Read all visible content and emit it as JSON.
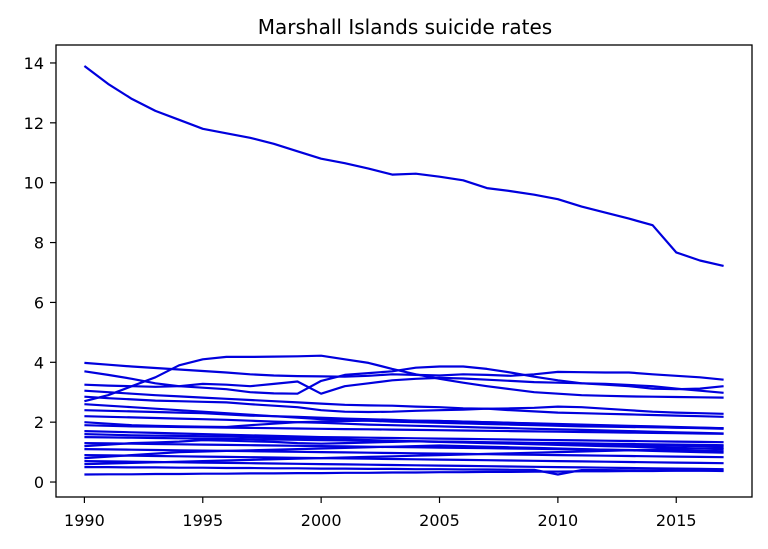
{
  "chart_data": {
    "type": "line",
    "title": "Marshall Islands suicide rates",
    "xlabel": "",
    "ylabel": "",
    "xlim": [
      1988.8,
      2018.2
    ],
    "ylim": [
      -0.5,
      14.6
    ],
    "xticks": [
      1990,
      1995,
      2000,
      2005,
      2010,
      2015
    ],
    "yticks": [
      0,
      2,
      4,
      6,
      8,
      10,
      12,
      14
    ],
    "line_color": "#0000dd",
    "grid": false,
    "x": [
      1990,
      1991,
      1992,
      1993,
      1994,
      1995,
      1996,
      1997,
      1998,
      1999,
      2000,
      2001,
      2002,
      2003,
      2004,
      2005,
      2006,
      2007,
      2008,
      2009,
      2010,
      2011,
      2012,
      2013,
      2014,
      2015,
      2016,
      2017
    ],
    "series": [
      {
        "values": [
          13.9,
          13.3,
          12.8,
          12.4,
          12.1,
          11.8,
          11.65,
          11.5,
          11.3,
          11.05,
          10.8,
          10.65,
          10.47,
          10.27,
          10.3,
          10.2,
          10.08,
          9.82,
          9.72,
          9.6,
          9.45,
          9.2,
          9.0,
          8.8,
          8.58,
          7.67,
          7.4,
          7.22
        ]
      },
      {
        "values": [
          3.98,
          3.92,
          3.86,
          3.81,
          3.76,
          3.71,
          3.66,
          3.6,
          3.56,
          3.54,
          3.53,
          3.52,
          3.55,
          3.6,
          3.58,
          3.56,
          3.6,
          3.58,
          3.55,
          3.6,
          3.68,
          3.67,
          3.66,
          3.66,
          3.6,
          3.55,
          3.5,
          3.42
        ]
      },
      {
        "values": [
          2.7,
          2.9,
          3.2,
          3.5,
          3.9,
          4.1,
          4.18,
          4.18,
          4.19,
          4.2,
          4.22,
          4.1,
          3.98,
          3.78,
          3.6,
          3.45,
          3.32,
          3.2,
          3.1,
          3.0,
          2.95,
          2.9,
          2.88,
          2.86,
          2.85,
          2.84,
          2.83,
          2.82
        ]
      },
      {
        "values": [
          3.7,
          3.58,
          3.45,
          3.3,
          3.2,
          3.15,
          3.1,
          3.0,
          2.96,
          2.95,
          3.38,
          3.58,
          3.64,
          3.7,
          3.82,
          3.86,
          3.86,
          3.78,
          3.66,
          3.52,
          3.4,
          3.3,
          3.25,
          3.2,
          3.12,
          3.1,
          3.12,
          3.2
        ]
      },
      {
        "values": [
          3.25,
          3.22,
          3.2,
          3.18,
          3.2,
          3.28,
          3.25,
          3.2,
          3.28,
          3.36,
          2.95,
          3.2,
          3.3,
          3.4,
          3.45,
          3.48,
          3.46,
          3.42,
          3.38,
          3.34,
          3.32,
          3.3,
          3.28,
          3.24,
          3.2,
          3.12,
          3.05,
          2.98
        ]
      },
      {
        "values": [
          3.05,
          3.0,
          2.95,
          2.9,
          2.86,
          2.82,
          2.78,
          2.74,
          2.7,
          2.66,
          2.62,
          2.58,
          2.56,
          2.55,
          2.52,
          2.5,
          2.46,
          2.45,
          2.46,
          2.48,
          2.52,
          2.5,
          2.45,
          2.4,
          2.35,
          2.32,
          2.3,
          2.28
        ]
      },
      {
        "values": [
          2.85,
          2.8,
          2.76,
          2.72,
          2.7,
          2.68,
          2.66,
          2.6,
          2.55,
          2.5,
          2.4,
          2.35,
          2.34,
          2.35,
          2.38,
          2.4,
          2.42,
          2.45,
          2.4,
          2.36,
          2.32,
          2.3,
          2.28,
          2.26,
          2.24,
          2.22,
          2.2,
          2.18
        ]
      },
      {
        "values": [
          2.6,
          2.55,
          2.5,
          2.45,
          2.4,
          2.35,
          2.3,
          2.25,
          2.2,
          2.15,
          2.1,
          2.08,
          2.05,
          2.02,
          2.0,
          1.98,
          1.96,
          1.94,
          1.92,
          1.9,
          1.88,
          1.86,
          1.85,
          1.84,
          1.83,
          1.82,
          1.81,
          1.8
        ]
      },
      {
        "values": [
          2.4,
          2.38,
          2.36,
          2.34,
          2.32,
          2.3,
          2.26,
          2.22,
          2.2,
          2.18,
          2.15,
          2.12,
          2.1,
          2.08,
          2.05,
          2.04,
          2.02,
          2.0,
          1.98,
          1.96,
          1.94,
          1.92,
          1.9,
          1.88,
          1.86,
          1.84,
          1.82,
          1.8
        ]
      },
      {
        "values": [
          2.2,
          2.18,
          2.16,
          2.14,
          2.12,
          2.1,
          2.08,
          2.05,
          2.02,
          2.0,
          1.98,
          1.95,
          1.92,
          1.9,
          1.88,
          1.86,
          1.84,
          1.82,
          1.8,
          1.78,
          1.76,
          1.74,
          1.72,
          1.7,
          1.68,
          1.66,
          1.64,
          1.62
        ]
      },
      {
        "values": [
          1.9,
          1.88,
          1.86,
          1.85,
          1.84,
          1.83,
          1.82,
          1.81,
          1.8,
          1.79,
          1.78,
          1.77,
          1.76,
          1.75,
          1.74,
          1.73,
          1.72,
          1.71,
          1.7,
          1.69,
          1.68,
          1.67,
          1.66,
          1.65,
          1.64,
          1.63,
          1.62,
          1.61
        ]
      },
      {
        "values": [
          1.7,
          1.68,
          1.66,
          1.64,
          1.62,
          1.6,
          1.58,
          1.56,
          1.54,
          1.52,
          1.5,
          1.49,
          1.48,
          1.47,
          1.46,
          1.45,
          1.44,
          1.43,
          1.42,
          1.41,
          1.4,
          1.39,
          1.38,
          1.37,
          1.36,
          1.35,
          1.34,
          1.33
        ]
      },
      {
        "values": [
          1.5,
          1.49,
          1.48,
          1.47,
          1.46,
          1.45,
          1.44,
          1.43,
          1.42,
          1.41,
          1.4,
          1.39,
          1.38,
          1.37,
          1.36,
          1.35,
          1.34,
          1.33,
          1.32,
          1.31,
          1.3,
          1.29,
          1.28,
          1.27,
          1.26,
          1.25,
          1.24,
          1.23
        ]
      },
      {
        "values": [
          1.3,
          1.29,
          1.28,
          1.27,
          1.26,
          1.25,
          1.24,
          1.23,
          1.22,
          1.21,
          1.2,
          1.19,
          1.18,
          1.17,
          1.16,
          1.15,
          1.14,
          1.13,
          1.12,
          1.11,
          1.1,
          1.09,
          1.08,
          1.07,
          1.06,
          1.05,
          1.04,
          1.03
        ]
      },
      {
        "values": [
          1.1,
          1.09,
          1.08,
          1.07,
          1.06,
          1.05,
          1.04,
          1.03,
          1.02,
          1.01,
          1.0,
          0.99,
          0.98,
          0.97,
          0.96,
          0.95,
          0.94,
          0.93,
          0.92,
          0.91,
          0.9,
          0.89,
          0.88,
          0.87,
          0.86,
          0.85,
          0.84,
          0.83
        ]
      },
      {
        "values": [
          0.9,
          0.89,
          0.88,
          0.87,
          0.86,
          0.85,
          0.84,
          0.83,
          0.82,
          0.81,
          0.8,
          0.79,
          0.78,
          0.77,
          0.76,
          0.75,
          0.74,
          0.73,
          0.72,
          0.71,
          0.7,
          0.69,
          0.68,
          0.67,
          0.66,
          0.65,
          0.64,
          0.63
        ]
      },
      {
        "values": [
          0.7,
          0.69,
          0.68,
          0.67,
          0.66,
          0.65,
          0.64,
          0.63,
          0.62,
          0.61,
          0.6,
          0.59,
          0.58,
          0.57,
          0.56,
          0.55,
          0.54,
          0.53,
          0.52,
          0.51,
          0.5,
          0.49,
          0.48,
          0.47,
          0.46,
          0.45,
          0.44,
          0.43
        ]
      },
      {
        "values": [
          0.5,
          0.5,
          0.49,
          0.49,
          0.48,
          0.48,
          0.47,
          0.47,
          0.46,
          0.46,
          0.45,
          0.45,
          0.44,
          0.44,
          0.43,
          0.43,
          0.42,
          0.42,
          0.41,
          0.41,
          0.25,
          0.4,
          0.4,
          0.39,
          0.39,
          0.38,
          0.38,
          0.37
        ]
      },
      {
        "values": [
          0.25,
          0.26,
          0.26,
          0.27,
          0.27,
          0.28,
          0.28,
          0.29,
          0.29,
          0.3,
          0.3,
          0.31,
          0.31,
          0.32,
          0.32,
          0.33,
          0.33,
          0.34,
          0.34,
          0.35,
          0.35,
          0.36,
          0.36,
          0.37,
          0.37,
          0.38,
          0.38,
          0.39
        ]
      },
      {
        "values": [
          1.2,
          1.25,
          1.3,
          1.32,
          1.35,
          1.4,
          1.38,
          1.36,
          1.34,
          1.3,
          1.28,
          1.3,
          1.32,
          1.34,
          1.36,
          1.35,
          1.34,
          1.32,
          1.3,
          1.28,
          1.26,
          1.25,
          1.24,
          1.23,
          1.22,
          1.21,
          1.2,
          1.2
        ]
      },
      {
        "values": [
          0.8,
          0.85,
          0.9,
          0.95,
          1.0,
          1.02,
          1.04,
          1.06,
          1.08,
          1.1,
          1.12,
          1.14,
          1.16,
          1.18,
          1.2,
          1.22,
          1.2,
          1.18,
          1.16,
          1.14,
          1.12,
          1.1,
          1.08,
          1.06,
          1.04,
          1.02,
          1.0,
          0.98
        ]
      },
      {
        "values": [
          2.0,
          1.95,
          1.9,
          1.88,
          1.86,
          1.85,
          1.84,
          1.9,
          1.95,
          2.0,
          2.02,
          2.04,
          2.05,
          2.06,
          2.05,
          2.04,
          2.02,
          2.0,
          1.98,
          1.95,
          1.92,
          1.9,
          1.88,
          1.86,
          1.84,
          1.82,
          1.8,
          1.78
        ]
      },
      {
        "values": [
          0.6,
          0.62,
          0.64,
          0.66,
          0.68,
          0.7,
          0.72,
          0.74,
          0.76,
          0.78,
          0.8,
          0.82,
          0.84,
          0.86,
          0.88,
          0.9,
          0.92,
          0.94,
          0.96,
          0.98,
          1.0,
          1.02,
          1.04,
          1.06,
          1.08,
          1.1,
          1.12,
          1.14
        ]
      },
      {
        "values": [
          1.6,
          1.58,
          1.56,
          1.55,
          1.54,
          1.53,
          1.52,
          1.5,
          1.48,
          1.46,
          1.44,
          1.42,
          1.4,
          1.38,
          1.36,
          1.34,
          1.32,
          1.3,
          1.28,
          1.26,
          1.24,
          1.22,
          1.2,
          1.18,
          1.16,
          1.14,
          1.12,
          1.1
        ]
      }
    ]
  }
}
